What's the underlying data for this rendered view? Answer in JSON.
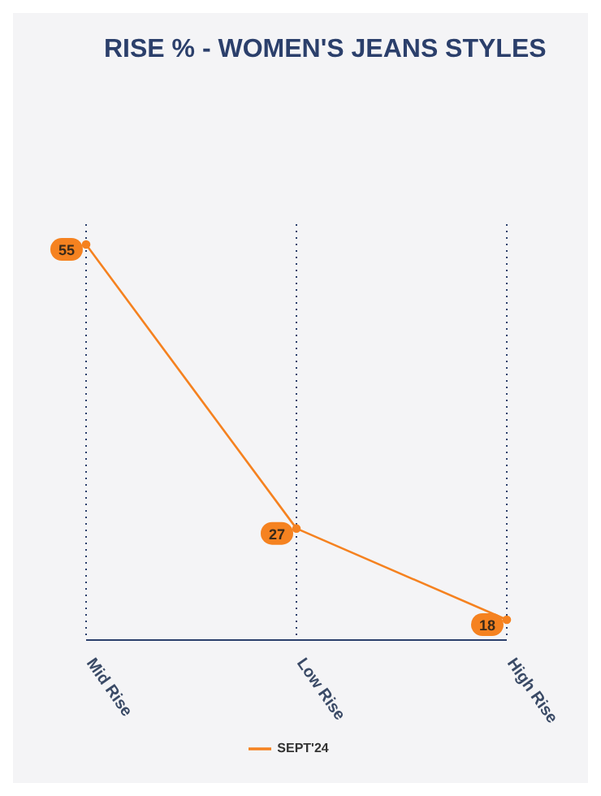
{
  "chart_data": {
    "type": "line",
    "title": "RISE % - WOMEN'S JEANS STYLES",
    "categories": [
      "Mid Rise",
      "Low Rise",
      "High Rise"
    ],
    "series": [
      {
        "name": "SEPT'24",
        "color": "#f58220",
        "values": [
          55,
          27,
          18
        ]
      }
    ],
    "tick_labels": "x",
    "grid": "x",
    "legend": "bottom",
    "marker": "circle",
    "data_labels": true
  }
}
